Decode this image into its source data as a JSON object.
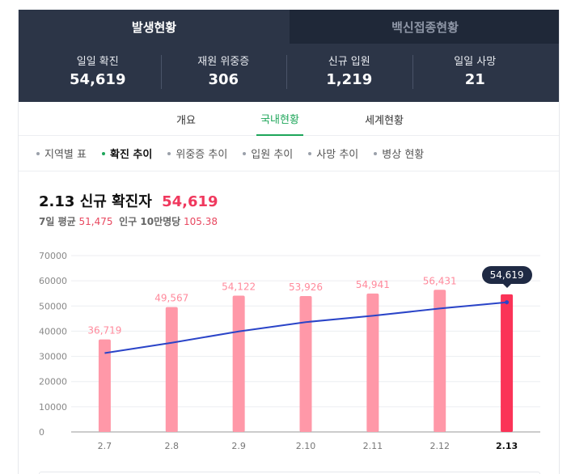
{
  "top_tabs": [
    {
      "label": "발생현황",
      "active": true
    },
    {
      "label": "백신접종현황",
      "active": false
    }
  ],
  "stats": [
    {
      "label": "일일 확진",
      "value": "54,619"
    },
    {
      "label": "재원 위중증",
      "value": "306"
    },
    {
      "label": "신규 입원",
      "value": "1,219"
    },
    {
      "label": "일일 사망",
      "value": "21"
    }
  ],
  "subtabs": [
    {
      "label": "개요",
      "active": false
    },
    {
      "label": "국내현황",
      "active": true
    },
    {
      "label": "세계현황",
      "active": false
    }
  ],
  "filters": [
    {
      "label": "지역별 표",
      "active": false
    },
    {
      "label": "확진 추이",
      "active": true
    },
    {
      "label": "위중증 추이",
      "active": false
    },
    {
      "label": "입원 추이",
      "active": false
    },
    {
      "label": "사망 추이",
      "active": false
    },
    {
      "label": "병상 현황",
      "active": false
    }
  ],
  "chart_header": {
    "date": "2.13",
    "title": "신규 확진자",
    "value": "54,619",
    "avg_label": "7일 평균",
    "avg_value": "51,475",
    "per_label": "인구 10만명당",
    "per_value": "105.38"
  },
  "colors": {
    "header_bg": "#2c3547",
    "accent_green": "#1ea65a",
    "bar": "#ff98a8",
    "bar_highlight": "#fb3357",
    "line": "#2a44c8",
    "tooltip_bg": "#1f2a44"
  },
  "chart_data": {
    "type": "bar",
    "categories": [
      "2.7",
      "2.8",
      "2.9",
      "2.10",
      "2.11",
      "2.12",
      "2.13"
    ],
    "series": [
      {
        "values": [
          36719,
          49567,
          54122,
          53926,
          54941,
          56431,
          54619
        ]
      },
      {
        "type": "line",
        "values": [
          31300,
          35400,
          39900,
          43600,
          46100,
          49000,
          51475
        ]
      }
    ],
    "value_labels": [
      "36,719",
      "49,567",
      "54,122",
      "53,926",
      "54,941",
      "56,431"
    ],
    "tooltip_label": "54,619",
    "highlight_index": 6,
    "yticks": [
      0,
      10000,
      20000,
      30000,
      40000,
      50000,
      60000,
      70000
    ],
    "ylim": [
      0,
      70000
    ],
    "grid": true,
    "xlabel": "",
    "ylabel": ""
  }
}
